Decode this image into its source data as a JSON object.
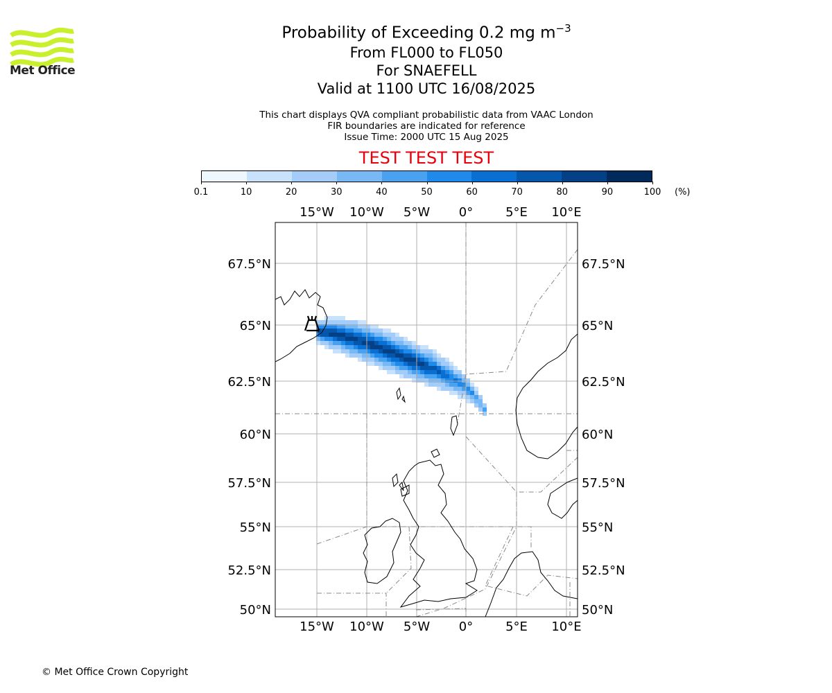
{
  "logo": {
    "text": "Met Office",
    "color": "#c8f02c"
  },
  "title": {
    "line1": "Probability of Exceeding 0.2 mg m",
    "line1_superscript": "−3",
    "line2": "From FL000 to FL050",
    "line3": "For SNAEFELL",
    "line4": "Valid at 1100 UTC 16/08/2025"
  },
  "subtitle": {
    "line1": "This chart displays QVA compliant probabilistic data from VAAC London",
    "line2": "FIR boundaries are indicated for reference",
    "line3": "Issue Time: 2000 UTC 15 Aug 2025"
  },
  "banner": {
    "text": "TEST TEST TEST",
    "color": "#e8000b"
  },
  "colorbar": {
    "ticks": [
      "0.1",
      "10",
      "20",
      "30",
      "40",
      "50",
      "60",
      "70",
      "80",
      "90",
      "100"
    ],
    "unit": "(%)",
    "colors": [
      "#eef6fe",
      "#c9e2fb",
      "#a3cdf8",
      "#78b8f4",
      "#4aa1ef",
      "#1f8aea",
      "#0a6fd2",
      "#0557ac",
      "#034085",
      "#002a5c"
    ]
  },
  "map": {
    "lon_labels": [
      "15°W",
      "10°W",
      "5°W",
      "0°",
      "5°E",
      "10°E"
    ],
    "lat_labels": [
      "67.5°N",
      "65°N",
      "62.5°N",
      "60°N",
      "57.5°N",
      "55°N",
      "52.5°N",
      "50°N"
    ],
    "volcano_symbol": "volcano-icon",
    "lon_range": [
      -19,
      11
    ],
    "lat_range": [
      49.6,
      69.2
    ]
  },
  "footer": {
    "copyright": "© Met Office Crown Copyright"
  }
}
